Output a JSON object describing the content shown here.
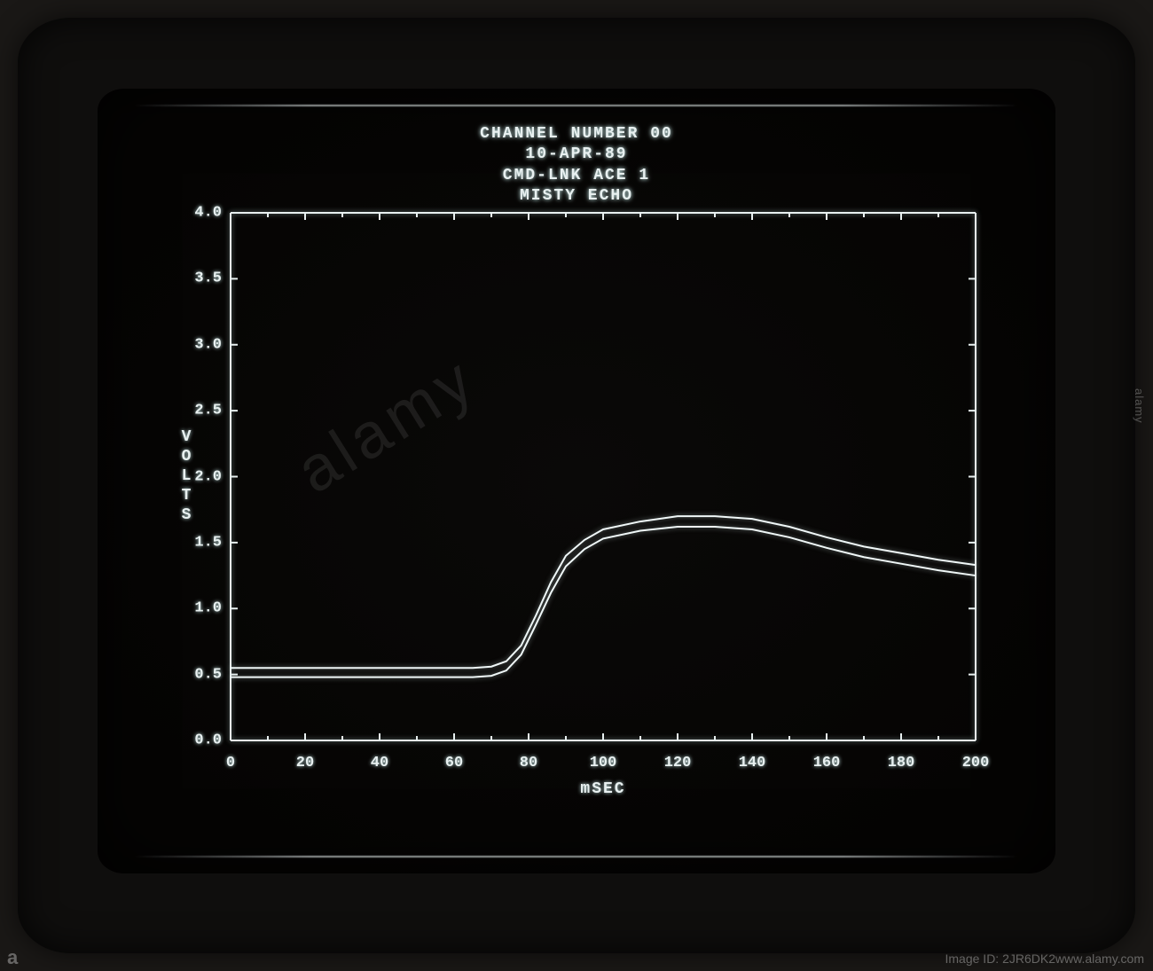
{
  "monitor": {
    "bezel_color": "#0f0e0d",
    "screen_bg": "#050403"
  },
  "chart": {
    "type": "line",
    "title_lines": [
      "CHANNEL NUMBER 00",
      "10-APR-89",
      "CMD-LNK ACE 1",
      "MISTY ECHO"
    ],
    "x_label": "mSEC",
    "y_label": "VOLTS",
    "xlim": [
      0,
      200
    ],
    "ylim": [
      0.0,
      4.0
    ],
    "x_ticks": [
      0,
      20,
      40,
      60,
      80,
      100,
      120,
      140,
      160,
      180,
      200
    ],
    "x_tick_labels": [
      "0",
      "20",
      "40",
      "60",
      "80",
      "100",
      "120",
      "140",
      "160",
      "180",
      "200"
    ],
    "y_ticks": [
      0.0,
      0.5,
      1.0,
      1.5,
      2.0,
      2.5,
      3.0,
      3.5,
      4.0
    ],
    "y_tick_labels": [
      "0.0",
      "0.5",
      "1.0",
      "1.5",
      "2.0",
      "2.5",
      "3.0",
      "3.5",
      "4.0"
    ],
    "minor_x_count_per_major": 1,
    "trace_color": "#f0f8f8",
    "axis_color": "#e8f0f0",
    "background_color": "#000000",
    "text_color": "#e8f0f0",
    "line_width": 2,
    "font_size_title": 18,
    "font_size_labels": 18,
    "font_size_ticks": 17,
    "traces": [
      {
        "name": "upper",
        "points": [
          [
            0,
            0.55
          ],
          [
            10,
            0.55
          ],
          [
            20,
            0.55
          ],
          [
            30,
            0.55
          ],
          [
            40,
            0.55
          ],
          [
            50,
            0.55
          ],
          [
            60,
            0.55
          ],
          [
            65,
            0.55
          ],
          [
            70,
            0.56
          ],
          [
            74,
            0.6
          ],
          [
            78,
            0.72
          ],
          [
            82,
            0.95
          ],
          [
            86,
            1.2
          ],
          [
            90,
            1.4
          ],
          [
            95,
            1.52
          ],
          [
            100,
            1.6
          ],
          [
            110,
            1.66
          ],
          [
            120,
            1.7
          ],
          [
            130,
            1.7
          ],
          [
            140,
            1.68
          ],
          [
            150,
            1.62
          ],
          [
            160,
            1.54
          ],
          [
            170,
            1.47
          ],
          [
            180,
            1.42
          ],
          [
            190,
            1.37
          ],
          [
            200,
            1.33
          ]
        ]
      },
      {
        "name": "lower",
        "points": [
          [
            0,
            0.48
          ],
          [
            10,
            0.48
          ],
          [
            20,
            0.48
          ],
          [
            30,
            0.48
          ],
          [
            40,
            0.48
          ],
          [
            50,
            0.48
          ],
          [
            60,
            0.48
          ],
          [
            65,
            0.48
          ],
          [
            70,
            0.49
          ],
          [
            74,
            0.53
          ],
          [
            78,
            0.65
          ],
          [
            82,
            0.88
          ],
          [
            86,
            1.12
          ],
          [
            90,
            1.32
          ],
          [
            95,
            1.45
          ],
          [
            100,
            1.53
          ],
          [
            110,
            1.59
          ],
          [
            120,
            1.62
          ],
          [
            130,
            1.62
          ],
          [
            140,
            1.6
          ],
          [
            150,
            1.54
          ],
          [
            160,
            1.46
          ],
          [
            170,
            1.39
          ],
          [
            180,
            1.34
          ],
          [
            190,
            1.29
          ],
          [
            200,
            1.25
          ]
        ]
      }
    ]
  },
  "watermark": {
    "diagonal": "alamy",
    "side": "alamy",
    "corner_id": "Image ID: 2JR6DK2",
    "corner_url": "www.alamy.com",
    "corner_a": "a"
  }
}
